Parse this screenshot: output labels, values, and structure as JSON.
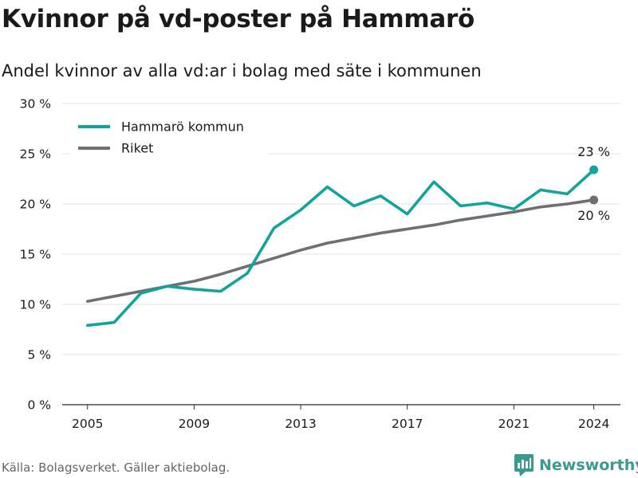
{
  "title": "Kvinnor på vd-poster på Hammarö",
  "subtitle": "Andel kvinnor av alla vd:ar i bolag med säte i kommunen",
  "source": "Källa: Bolagsverket. Gäller aktiebolag.",
  "brand": {
    "name": "Newsworthy",
    "icon": "bar-chart-logo-icon",
    "color": "#3a9a8e"
  },
  "chart_data": {
    "type": "line",
    "title": "Kvinnor på vd-poster på Hammarö",
    "subtitle": "Andel kvinnor av alla vd:ar i bolag med säte i kommunen",
    "x": [
      2005,
      2006,
      2007,
      2008,
      2009,
      2010,
      2011,
      2012,
      2013,
      2014,
      2015,
      2016,
      2017,
      2018,
      2019,
      2020,
      2021,
      2022,
      2023,
      2024
    ],
    "xticks": [
      2005,
      2009,
      2013,
      2017,
      2021,
      2024
    ],
    "xlim": [
      2004.05,
      2025.0
    ],
    "ylim": [
      0,
      30
    ],
    "yticks": [
      0,
      5,
      10,
      15,
      20,
      25,
      30
    ],
    "ytick_labels": [
      "0 %",
      "5 %",
      "10 %",
      "15 %",
      "20 %",
      "25 %",
      "30 %"
    ],
    "grid": true,
    "legend_position": "top-left",
    "series": [
      {
        "name": "Hammarö kommun",
        "color": "#12a39a",
        "values": [
          7.9,
          8.2,
          11.1,
          11.8,
          11.5,
          11.3,
          13.1,
          17.6,
          19.4,
          21.7,
          19.8,
          20.8,
          19.0,
          22.2,
          19.8,
          20.1,
          19.5,
          21.4,
          21.0,
          23.4
        ],
        "end_label": "23 %"
      },
      {
        "name": "Riket",
        "color": "#6e6e73",
        "values": [
          10.3,
          10.8,
          11.3,
          11.8,
          12.3,
          13.0,
          13.8,
          14.6,
          15.4,
          16.1,
          16.6,
          17.1,
          17.5,
          17.9,
          18.4,
          18.8,
          19.2,
          19.7,
          20.0,
          20.4
        ],
        "end_label": "20 %"
      }
    ]
  }
}
